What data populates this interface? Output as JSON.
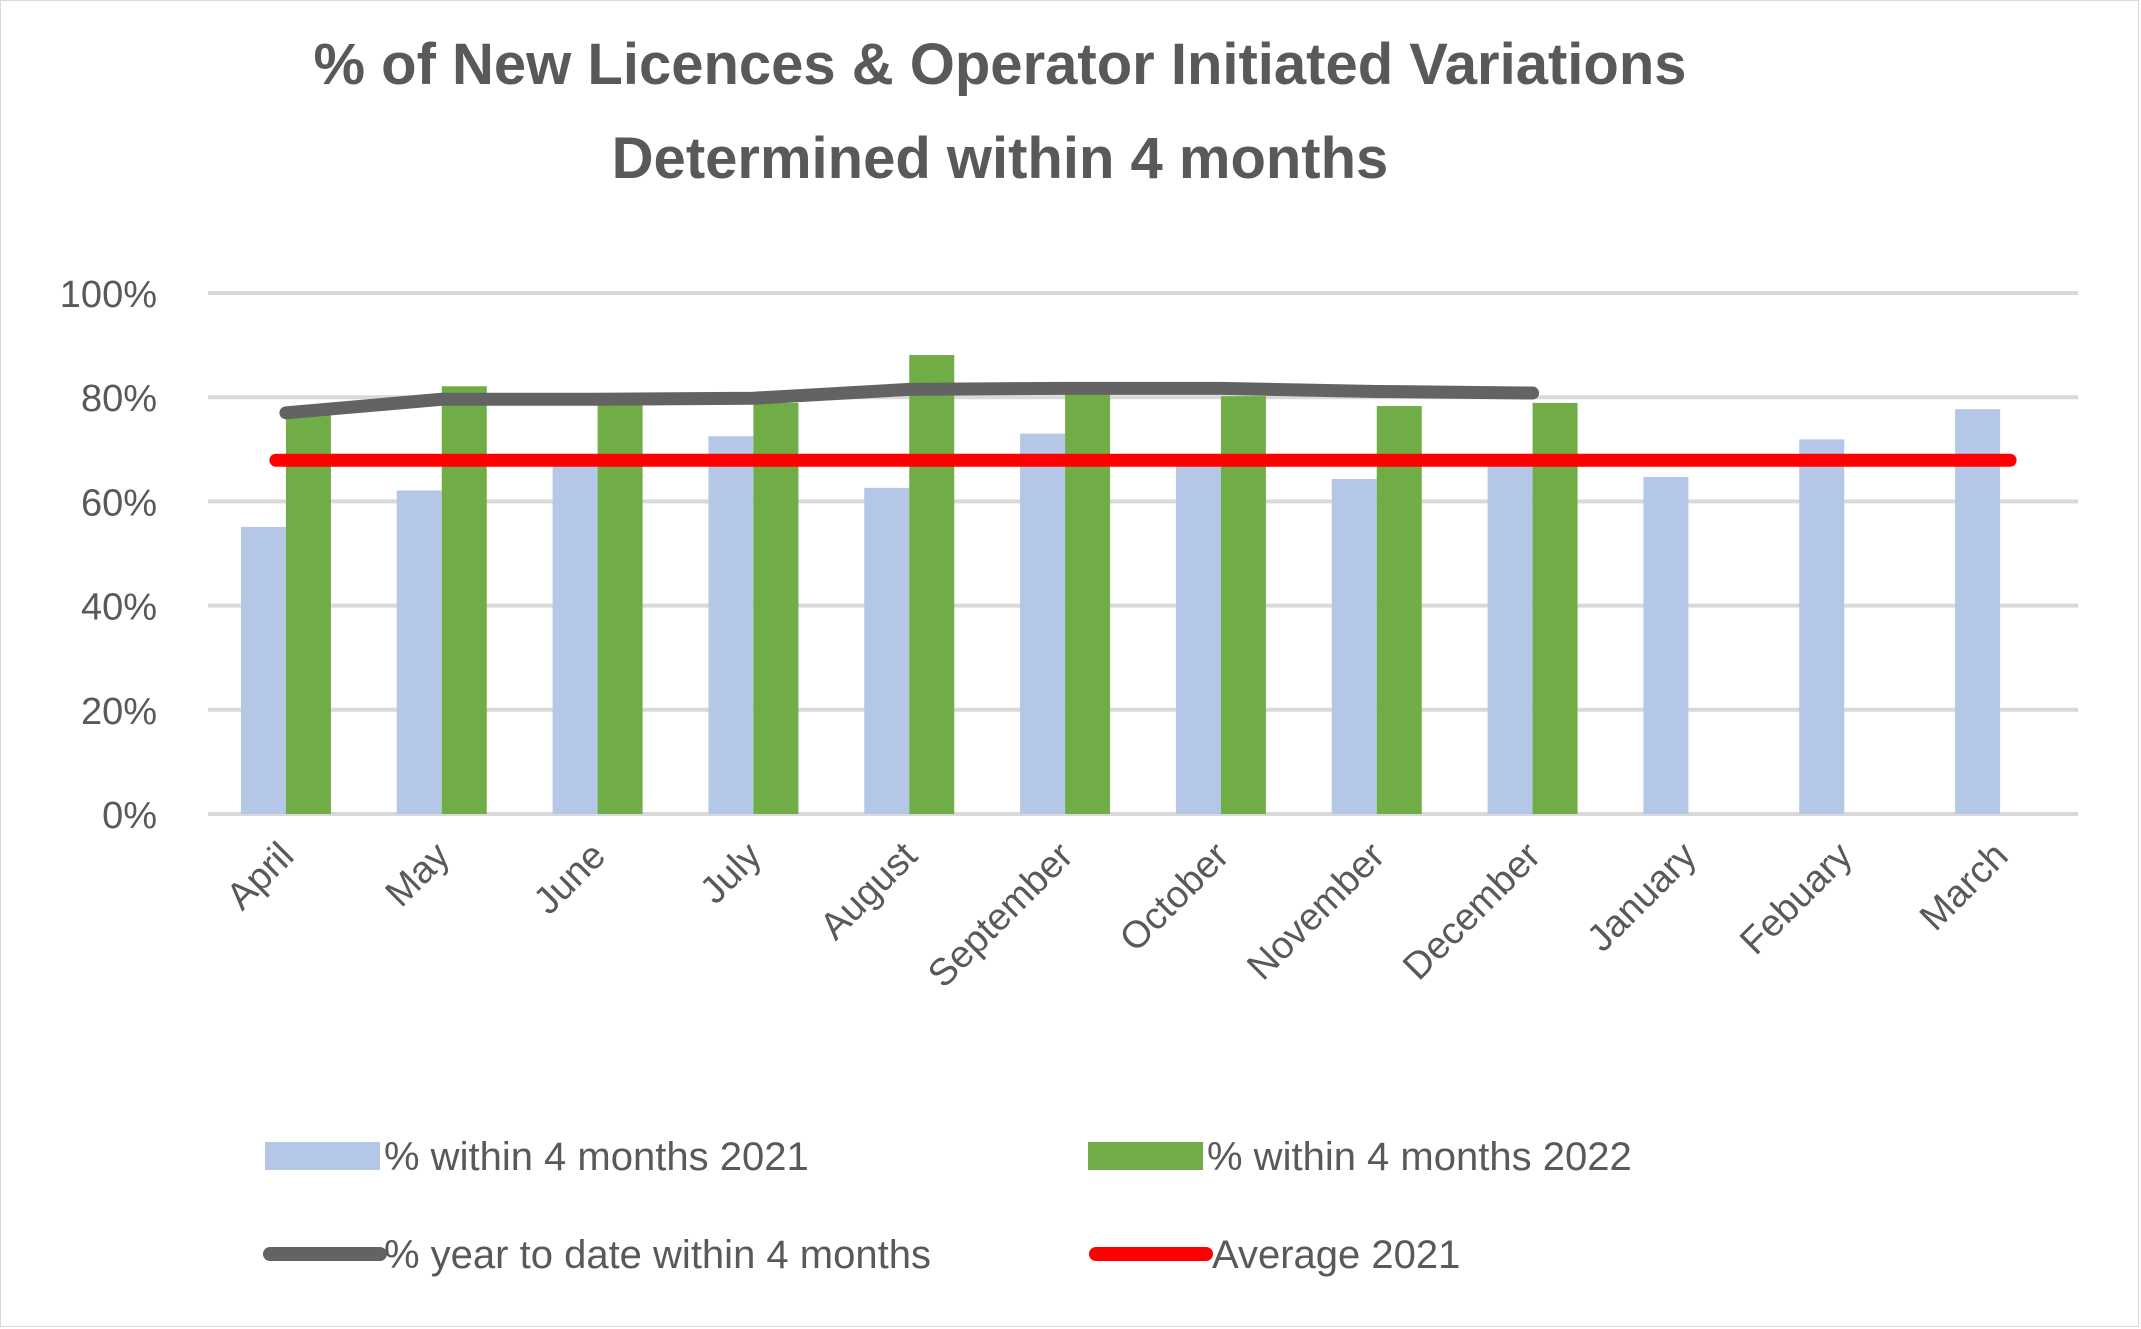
{
  "chart_data": {
    "type": "bar",
    "title": [
      "% of New Licences & Operator Initiated Variations",
      "Determined within 4 months"
    ],
    "xlabel": "",
    "ylabel": "",
    "ylim": [
      0,
      1
    ],
    "yticks": [
      0,
      0.2,
      0.4,
      0.6,
      0.8,
      1.0
    ],
    "ytick_labels": [
      "0%",
      "20%",
      "40%",
      "60%",
      "80%",
      "100%"
    ],
    "grid": true,
    "legend_position": "bottom",
    "categories": [
      "April",
      "May",
      "June",
      "July",
      "August",
      "September",
      "October",
      "November",
      "December",
      "January",
      "Febuary",
      "March"
    ],
    "series": [
      {
        "name": "% within 4 months 2021",
        "type": "bar",
        "color": "#b4c7e7",
        "values": [
          0.551,
          0.621,
          0.674,
          0.725,
          0.626,
          0.73,
          0.675,
          0.643,
          0.672,
          0.647,
          0.719,
          0.777
        ]
      },
      {
        "name": "% within 4 months 2022",
        "type": "bar",
        "color": "#70ad47",
        "values": [
          0.768,
          0.821,
          0.795,
          0.789,
          0.881,
          0.825,
          0.802,
          0.783,
          0.789,
          null,
          null,
          null
        ]
      },
      {
        "name": "% year to date within 4 months",
        "type": "line",
        "color": "#636363",
        "values": [
          0.77,
          0.796,
          0.796,
          0.798,
          0.815,
          0.817,
          0.817,
          0.811,
          0.808,
          null,
          null,
          null
        ]
      },
      {
        "name": "Average 2021",
        "type": "line",
        "color": "#ff0000",
        "values": [
          0.679,
          0.679,
          0.679,
          0.679,
          0.679,
          0.679,
          0.679,
          0.679,
          0.679,
          0.679,
          0.679,
          0.679
        ]
      }
    ],
    "legend": [
      {
        "label": "% within 4 months 2021",
        "kind": "box",
        "color": "#b4c7e7"
      },
      {
        "label": "% within 4 months 2022",
        "kind": "box",
        "color": "#70ad47"
      },
      {
        "label": "% year to date within 4 months",
        "kind": "line",
        "color": "#636363"
      },
      {
        "label": "Average 2021",
        "kind": "line",
        "color": "#ff0000"
      }
    ],
    "gridline_color": "#d9d9d9",
    "text_color": "#595959"
  }
}
